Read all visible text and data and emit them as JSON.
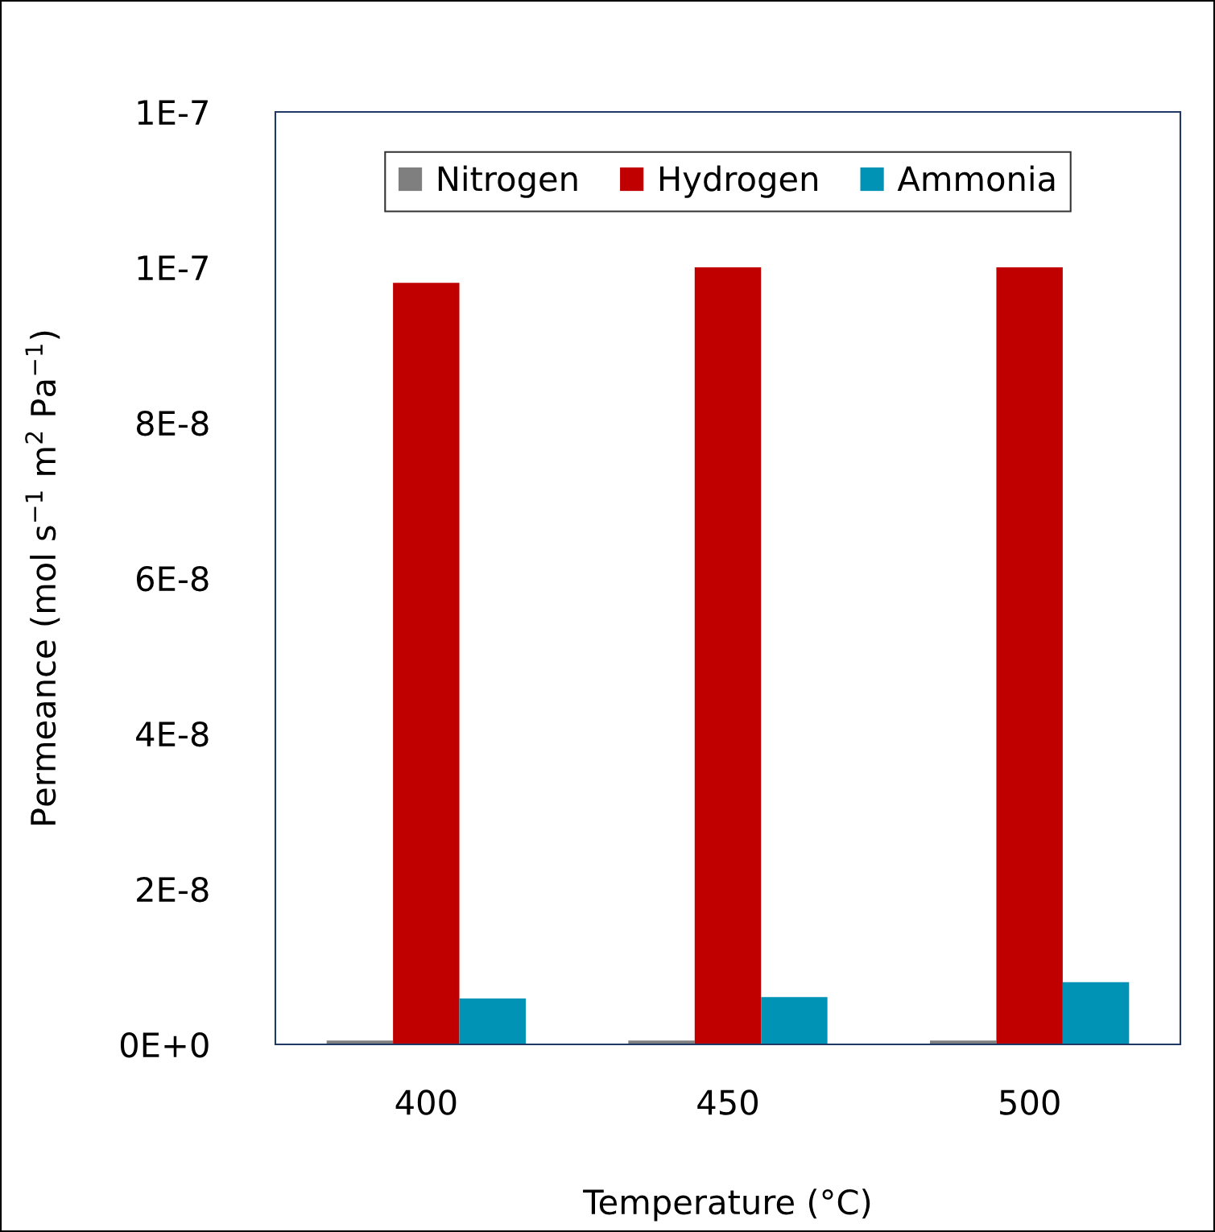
{
  "chart_data": {
    "type": "bar",
    "xlabel": "Temperature (°C)",
    "ylabel": "Permeance (mol s$^{−1}$ m$^{2}$ Pa$^{−1}$)",
    "categories": [
      "400",
      "450",
      "500"
    ],
    "series": [
      {
        "name": "Nitrogen",
        "color": "#7f7f7f",
        "values": [
          5e-10,
          5e-10,
          5e-10
        ]
      },
      {
        "name": "Hydrogen",
        "color": "#c00000",
        "values": [
          9.8e-08,
          1e-07,
          1e-07
        ]
      },
      {
        "name": "Ammonia",
        "color": "#0093b6",
        "values": [
          5.9e-09,
          6.1e-09,
          8e-09
        ]
      }
    ],
    "ylim": [
      0,
      1.2e-07
    ],
    "yticks": [
      {
        "value": 0,
        "label": "0E+0"
      },
      {
        "value": 2e-08,
        "label": "2E-8"
      },
      {
        "value": 4e-08,
        "label": "4E-8"
      },
      {
        "value": 6e-08,
        "label": "6E-8"
      },
      {
        "value": 8e-08,
        "label": "8E-8"
      },
      {
        "value": 1e-07,
        "label": "1E-7"
      },
      {
        "value": 1.2e-07,
        "label": "1E-7"
      }
    ],
    "legend": "top",
    "grid": false
  }
}
